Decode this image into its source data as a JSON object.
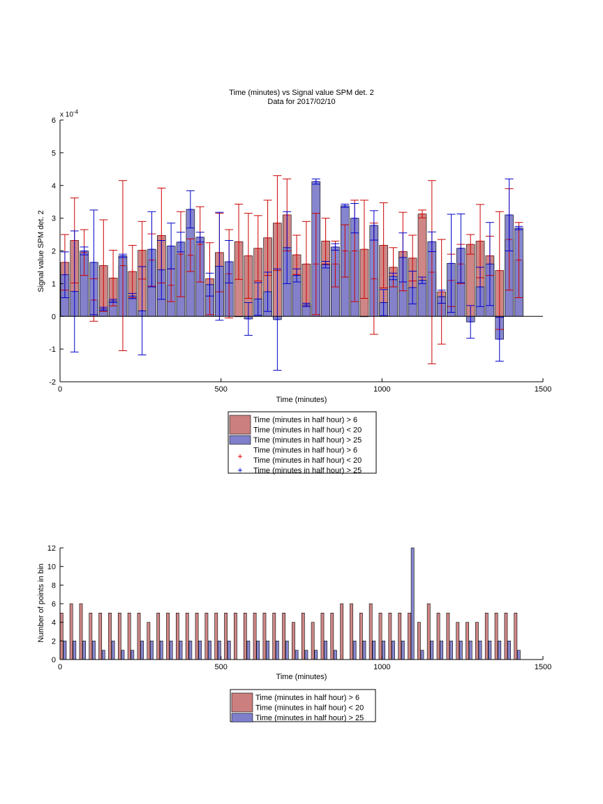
{
  "chart_data": [
    {
      "type": "bar",
      "title": "Time (minutes) vs Signal value SPM det. 2",
      "subtitle": "Data for 2017/02/10",
      "xlabel": "Time (minutes)",
      "ylabel": "Signal value SPM det. 2",
      "y_exponent_label": "x 10",
      "y_exponent_power": "-4",
      "xlim": [
        0,
        1500
      ],
      "ylim": [
        -2,
        6
      ],
      "xticks": [
        "0",
        "500",
        "1000",
        "1500"
      ],
      "yticks": [
        "-2",
        "-1",
        "0",
        "1",
        "2",
        "3",
        "4",
        "5",
        "6"
      ],
      "legend_position": "below",
      "legend": [
        {
          "line1": "Time (minutes in half hour) > 6",
          "line2": "Time (minutes in half hour) < 20",
          "kind": "bar",
          "color": "#cc7f7f"
        },
        {
          "line1": "Time (minutes in half hour) > 25",
          "line2": "",
          "kind": "bar",
          "color": "#7f7fcc"
        },
        {
          "line1": "Time (minutes in half hour) > 6",
          "line2": "Time (minutes in half hour) < 20",
          "kind": "marker",
          "color": "#dd0000"
        },
        {
          "line1": "Time (minutes in half hour) > 25",
          "line2": "",
          "kind": "marker",
          "color": "#0000cc"
        }
      ],
      "series": [
        {
          "color": "#cc7f7f",
          "edge": "#cc0000",
          "x": [
            15,
            45,
            75,
            105,
            135,
            165,
            195,
            225,
            255,
            285,
            315,
            345,
            375,
            405,
            435,
            465,
            495,
            525,
            555,
            585,
            615,
            645,
            675,
            705,
            735,
            765,
            795,
            825,
            855,
            885,
            915,
            945,
            975,
            1005,
            1035,
            1065,
            1095,
            1125,
            1155,
            1185,
            1215,
            1245,
            1275,
            1305,
            1335,
            1365,
            1395,
            1425
          ],
          "values": [
            1.65,
            2.32,
            1.95,
            0.5,
            1.55,
            1.17,
            1.55,
            1.37,
            2.02,
            1.72,
            2.47,
            0.95,
            1.9,
            1.87,
            2.2,
            1.15,
            1.95,
            1.3,
            2.28,
            1.85,
            2.08,
            2.4,
            2.85,
            3.1,
            1.88,
            1.6,
            1.6,
            2.3,
            1.6,
            2.0,
            2.0,
            2.05,
            1.15,
            2.17,
            1.5,
            1.98,
            1.78,
            3.13,
            1.35,
            0.75,
            1.1,
            1.6,
            2.2,
            2.3,
            1.85,
            1.4,
            2.35,
            1.72
          ],
          "err": [
            0.85,
            1.3,
            0.7,
            0.65,
            1.4,
            0.85,
            2.6,
            0.8,
            0.88,
            0.8,
            1.45,
            0.5,
            1.3,
            0.5,
            1.15,
            1.1,
            1.2,
            1.35,
            1.15,
            1.3,
            1.0,
            1.15,
            1.45,
            1.1,
            0.6,
            1.3,
            1.55,
            0.7,
            0.7,
            0.8,
            1.55,
            1.5,
            1.7,
            1.3,
            0.6,
            1.2,
            0.7,
            0.12,
            2.8,
            1.6,
            0.8,
            0.6,
            0.3,
            1.12,
            0.6,
            1.8,
            1.55,
            1.15
          ]
        },
        {
          "color": "#7f7fcc",
          "edge": "#0000cc",
          "x": [
            15,
            45,
            75,
            105,
            135,
            165,
            195,
            225,
            255,
            285,
            315,
            345,
            375,
            405,
            435,
            465,
            495,
            525,
            555,
            585,
            615,
            645,
            675,
            705,
            735,
            765,
            795,
            825,
            855,
            885,
            915,
            945,
            975,
            1005,
            1035,
            1065,
            1095,
            1125,
            1155,
            1185,
            1215,
            1245,
            1275,
            1305,
            1335,
            1365,
            1395,
            1425
          ],
          "values": [
            1.27,
            0.76,
            2.0,
            1.65,
            0.23,
            0.47,
            1.85,
            0.62,
            0.17,
            2.05,
            1.42,
            2.15,
            2.27,
            3.27,
            2.42,
            0.97,
            1.53,
            1.67,
            0,
            -0.08,
            0.53,
            0.75,
            -0.1,
            2.1,
            1.25,
            0.35,
            4.12,
            1.58,
            2.12,
            3.38,
            3.0,
            0,
            2.78,
            0.42,
            1.22,
            1.8,
            0.88,
            1.1,
            2.28,
            0.6,
            1.62,
            2.08,
            -0.17,
            0.9,
            1.6,
            -0.7,
            3.1,
            2.7
          ],
          "err": [
            0.7,
            1.85,
            0.12,
            1.6,
            0.05,
            0.05,
            0.05,
            0.08,
            1.35,
            1.15,
            0.9,
            0.7,
            0.3,
            0.57,
            0.15,
            0.35,
            1.65,
            0.65,
            0,
            0.5,
            0.5,
            0.6,
            1.55,
            1.1,
            0.2,
            0.05,
            0.08,
            0.1,
            0.1,
            0.05,
            0.45,
            0,
            0.45,
            0.4,
            0.1,
            0.75,
            0.5,
            0.1,
            0.3,
            0.2,
            1.5,
            1.05,
            0.5,
            0.6,
            1.27,
            0.67,
            1.1,
            0.05
          ]
        }
      ]
    },
    {
      "type": "bar",
      "xlabel": "Time (minutes)",
      "ylabel": "Number of points in bin",
      "xlim": [
        0,
        1500
      ],
      "ylim": [
        0,
        12
      ],
      "xticks": [
        "0",
        "500",
        "1000",
        "1500"
      ],
      "yticks": [
        "0",
        "2",
        "4",
        "6",
        "8",
        "10",
        "12"
      ],
      "legend_position": "below",
      "legend": [
        {
          "line1": "Time (minutes in half hour) > 6",
          "line2": "Time (minutes in half hour) < 20",
          "kind": "bar",
          "color": "#cc7f7f"
        },
        {
          "line1": "Time (minutes in half hour) > 25",
          "line2": "",
          "kind": "bar",
          "color": "#7f7fcc"
        }
      ],
      "series": [
        {
          "color": "#cc7f7f",
          "x": [
            5,
            35,
            65,
            95,
            125,
            155,
            185,
            215,
            245,
            275,
            305,
            335,
            365,
            395,
            425,
            455,
            485,
            515,
            545,
            575,
            605,
            635,
            665,
            695,
            725,
            755,
            785,
            815,
            845,
            875,
            905,
            935,
            965,
            995,
            1025,
            1055,
            1085,
            1115,
            1145,
            1175,
            1205,
            1235,
            1265,
            1295,
            1325,
            1355,
            1385,
            1415
          ],
          "values": [
            5,
            6,
            6,
            5,
            5,
            5,
            5,
            5,
            5,
            4,
            5,
            5,
            5,
            5,
            5,
            5,
            5,
            5,
            5,
            5,
            5,
            5,
            5,
            5,
            4,
            5,
            4,
            5,
            5,
            6,
            6,
            5,
            6,
            5,
            5,
            5,
            5,
            4,
            6,
            5,
            5,
            4,
            4,
            4,
            5,
            5,
            5,
            5
          ]
        },
        {
          "color": "#7f7fcc",
          "x": [
            15,
            45,
            75,
            105,
            135,
            165,
            195,
            225,
            255,
            285,
            315,
            345,
            375,
            405,
            435,
            465,
            495,
            525,
            555,
            585,
            615,
            645,
            675,
            705,
            735,
            765,
            795,
            825,
            855,
            885,
            915,
            945,
            975,
            1005,
            1035,
            1065,
            1095,
            1125,
            1155,
            1185,
            1215,
            1245,
            1275,
            1305,
            1335,
            1365,
            1395,
            1425
          ],
          "values": [
            2,
            2,
            2,
            2,
            1,
            2,
            1,
            1,
            2,
            2,
            2,
            2,
            2,
            2,
            2,
            2,
            2,
            2,
            0,
            2,
            2,
            2,
            2,
            2,
            1,
            1,
            1,
            2,
            1,
            0,
            2,
            2,
            2,
            2,
            2,
            2,
            12,
            1,
            2,
            2,
            2,
            2,
            2,
            2,
            2,
            2,
            2,
            1
          ]
        }
      ]
    }
  ]
}
